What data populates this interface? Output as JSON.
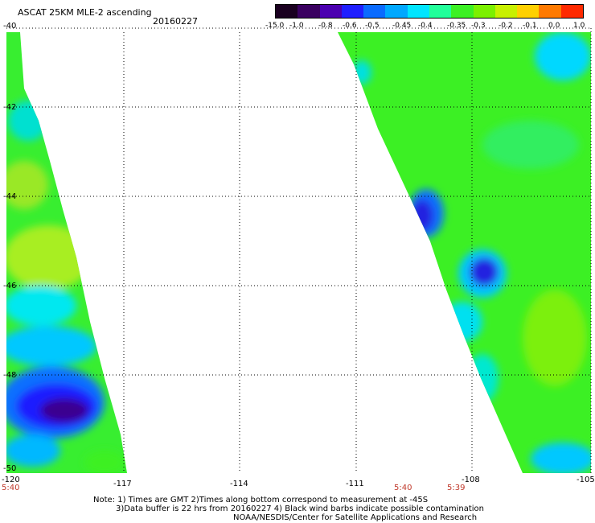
{
  "header": {
    "title": "ASCAT 25KM MLE-2 ascending",
    "date": "20160227"
  },
  "colorbar": {
    "labels": [
      "-15.0",
      "-1.0",
      "-0.8",
      "-0.6",
      "-0.5",
      "-0.45",
      "-0.4",
      "-0.35",
      "-0.3",
      "-0.2",
      "-0.1",
      "0.0",
      "1.0"
    ],
    "colors": [
      "#1a0020",
      "#3a0060",
      "#4b00b0",
      "#1f1fff",
      "#0a6bff",
      "#00a8ff",
      "#00e5ff",
      "#22ff9a",
      "#3cf024",
      "#7cf000",
      "#c8f000",
      "#ffd000",
      "#ff7a00",
      "#ff2a00"
    ]
  },
  "axes": {
    "x_ticks": [
      "-120",
      "-117",
      "-114",
      "-111",
      "-108",
      "-105"
    ],
    "y_ticks": [
      "-40",
      "-42",
      "-44",
      "-46",
      "-48",
      "-50"
    ]
  },
  "swath_times": [
    "5:40",
    "5:40",
    "5:39"
  ],
  "notes": [
    "Note: 1) Times are GMT 2)Times along bottom correspond to measurement at -45S",
    "3)Data buffer is 22 hrs from 20160227 4) Black wind barbs indicate possible contamination",
    "NOAA/NESDIS/Center for Satellite Applications and Research"
  ]
}
